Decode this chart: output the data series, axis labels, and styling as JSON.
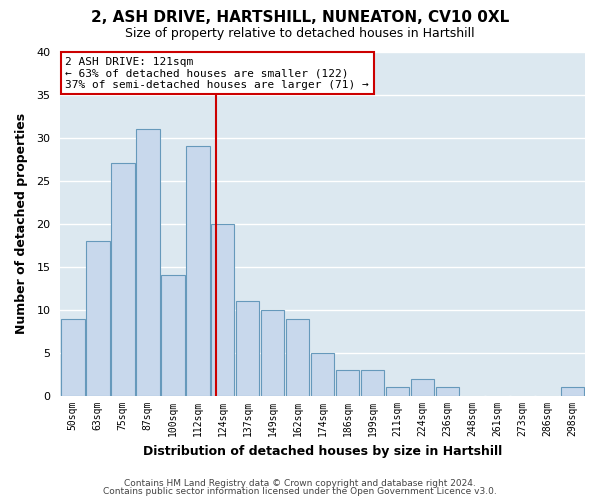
{
  "title": "2, ASH DRIVE, HARTSHILL, NUNEATON, CV10 0XL",
  "subtitle": "Size of property relative to detached houses in Hartshill",
  "xlabel": "Distribution of detached houses by size in Hartshill",
  "ylabel": "Number of detached properties",
  "bar_labels": [
    "50sqm",
    "63sqm",
    "75sqm",
    "87sqm",
    "100sqm",
    "112sqm",
    "124sqm",
    "137sqm",
    "149sqm",
    "162sqm",
    "174sqm",
    "186sqm",
    "199sqm",
    "211sqm",
    "224sqm",
    "236sqm",
    "248sqm",
    "261sqm",
    "273sqm",
    "286sqm",
    "298sqm"
  ],
  "bar_values": [
    9,
    18,
    27,
    31,
    14,
    29,
    20,
    11,
    10,
    9,
    5,
    3,
    3,
    1,
    2,
    1,
    0,
    0,
    0,
    0,
    1
  ],
  "bar_color": "#c8d8ec",
  "bar_edge_color": "#6699bb",
  "ylim": [
    0,
    40
  ],
  "yticks": [
    0,
    5,
    10,
    15,
    20,
    25,
    30,
    35,
    40
  ],
  "vline_color": "#cc0000",
  "annotation_title": "2 ASH DRIVE: 121sqm",
  "annotation_line1": "← 63% of detached houses are smaller (122)",
  "annotation_line2": "37% of semi-detached houses are larger (71) →",
  "footer_line1": "Contains HM Land Registry data © Crown copyright and database right 2024.",
  "footer_line2": "Contains public sector information licensed under the Open Government Licence v3.0.",
  "figure_bg": "#ffffff",
  "plot_bg": "#dce8f0",
  "grid_color": "#ffffff"
}
